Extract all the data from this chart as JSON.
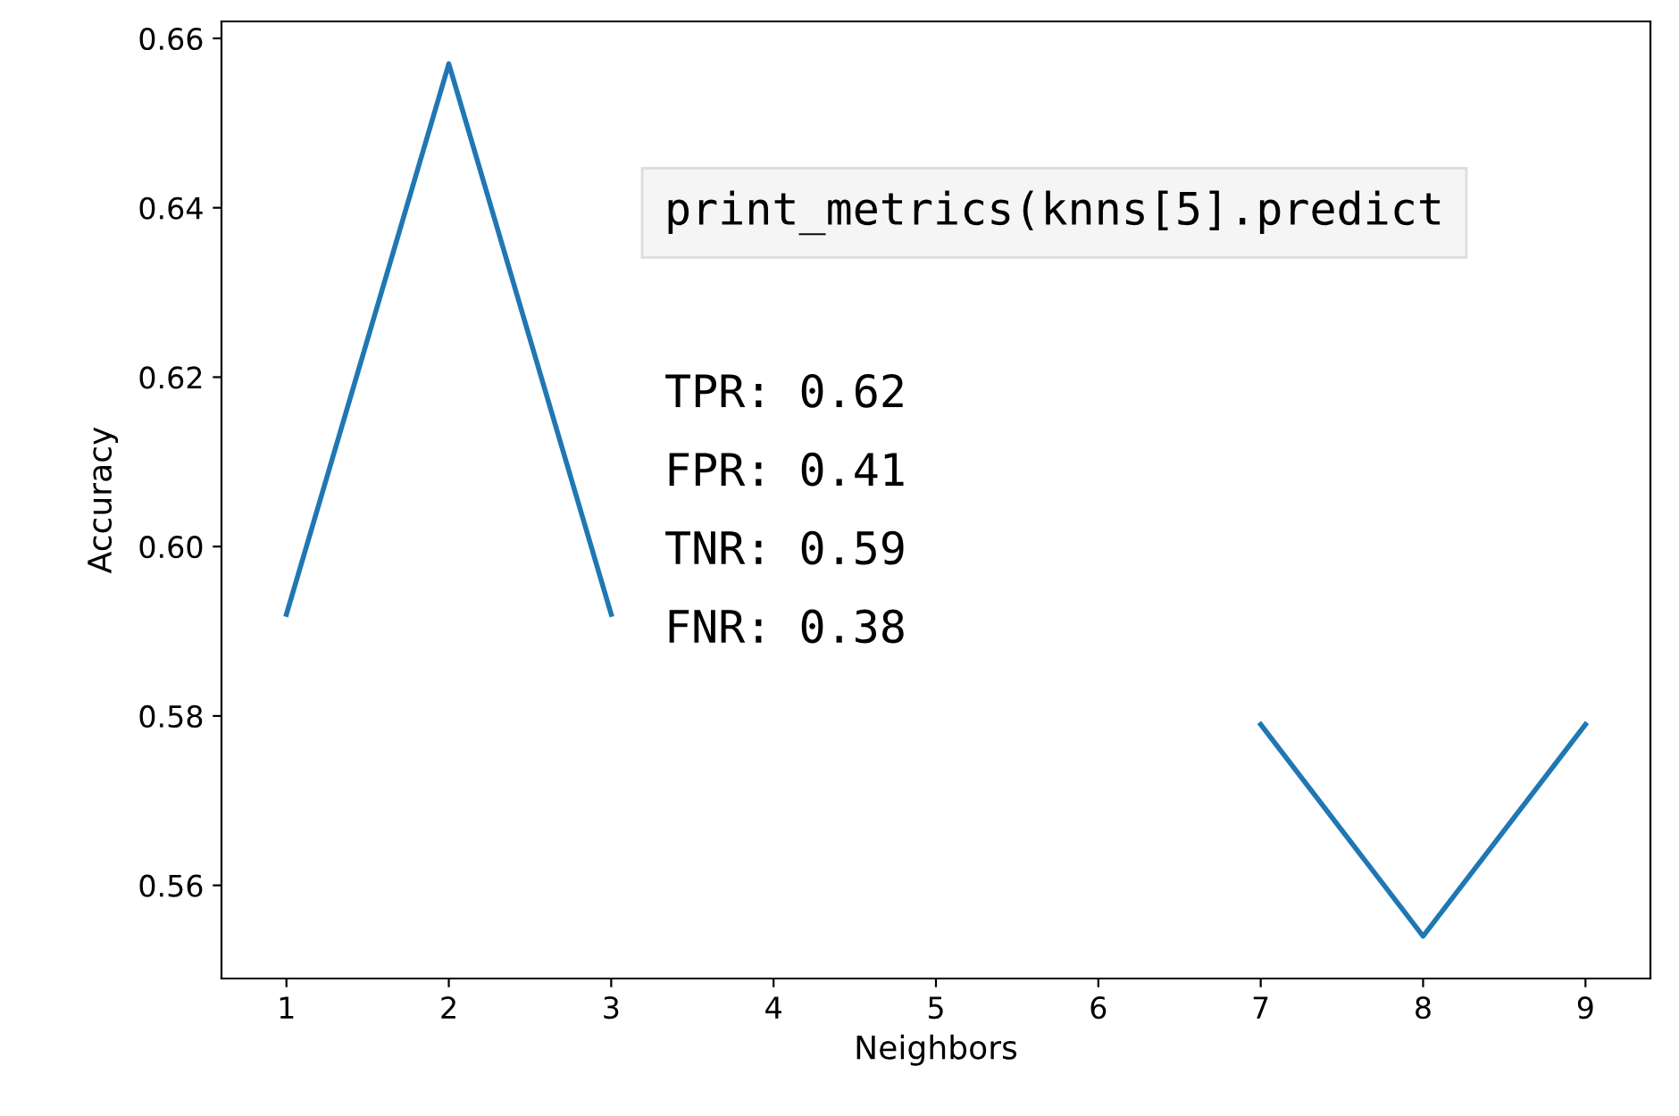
{
  "chart_data": {
    "type": "line",
    "xlabel": "Neighbors",
    "ylabel": "Accuracy",
    "x": [
      1,
      2,
      3,
      4,
      5,
      6,
      7,
      8,
      9
    ],
    "series": [
      {
        "color": "#1f77b4",
        "values": [
          0.592,
          0.657,
          0.592,
          null,
          null,
          null,
          0.579,
          0.554,
          0.579
        ]
      }
    ],
    "xlim": [
      0.6,
      9.4
    ],
    "ylim": [
      0.549,
      0.662
    ],
    "xticks": [
      1,
      2,
      3,
      4,
      5,
      6,
      7,
      8,
      9
    ],
    "yticks": [
      0.56,
      0.58,
      {
        "value": 0.6,
        "label": "0.60"
      },
      0.62,
      0.64,
      0.66
    ],
    "annotations": [
      "print_metrics(knns[5].predict",
      "TPR: 0.62",
      "FPR: 0.41",
      "TNR: 0.59",
      "FNR: 0.38"
    ],
    "grid": false,
    "legend": false,
    "marker": "none",
    "line_style": "solid"
  }
}
